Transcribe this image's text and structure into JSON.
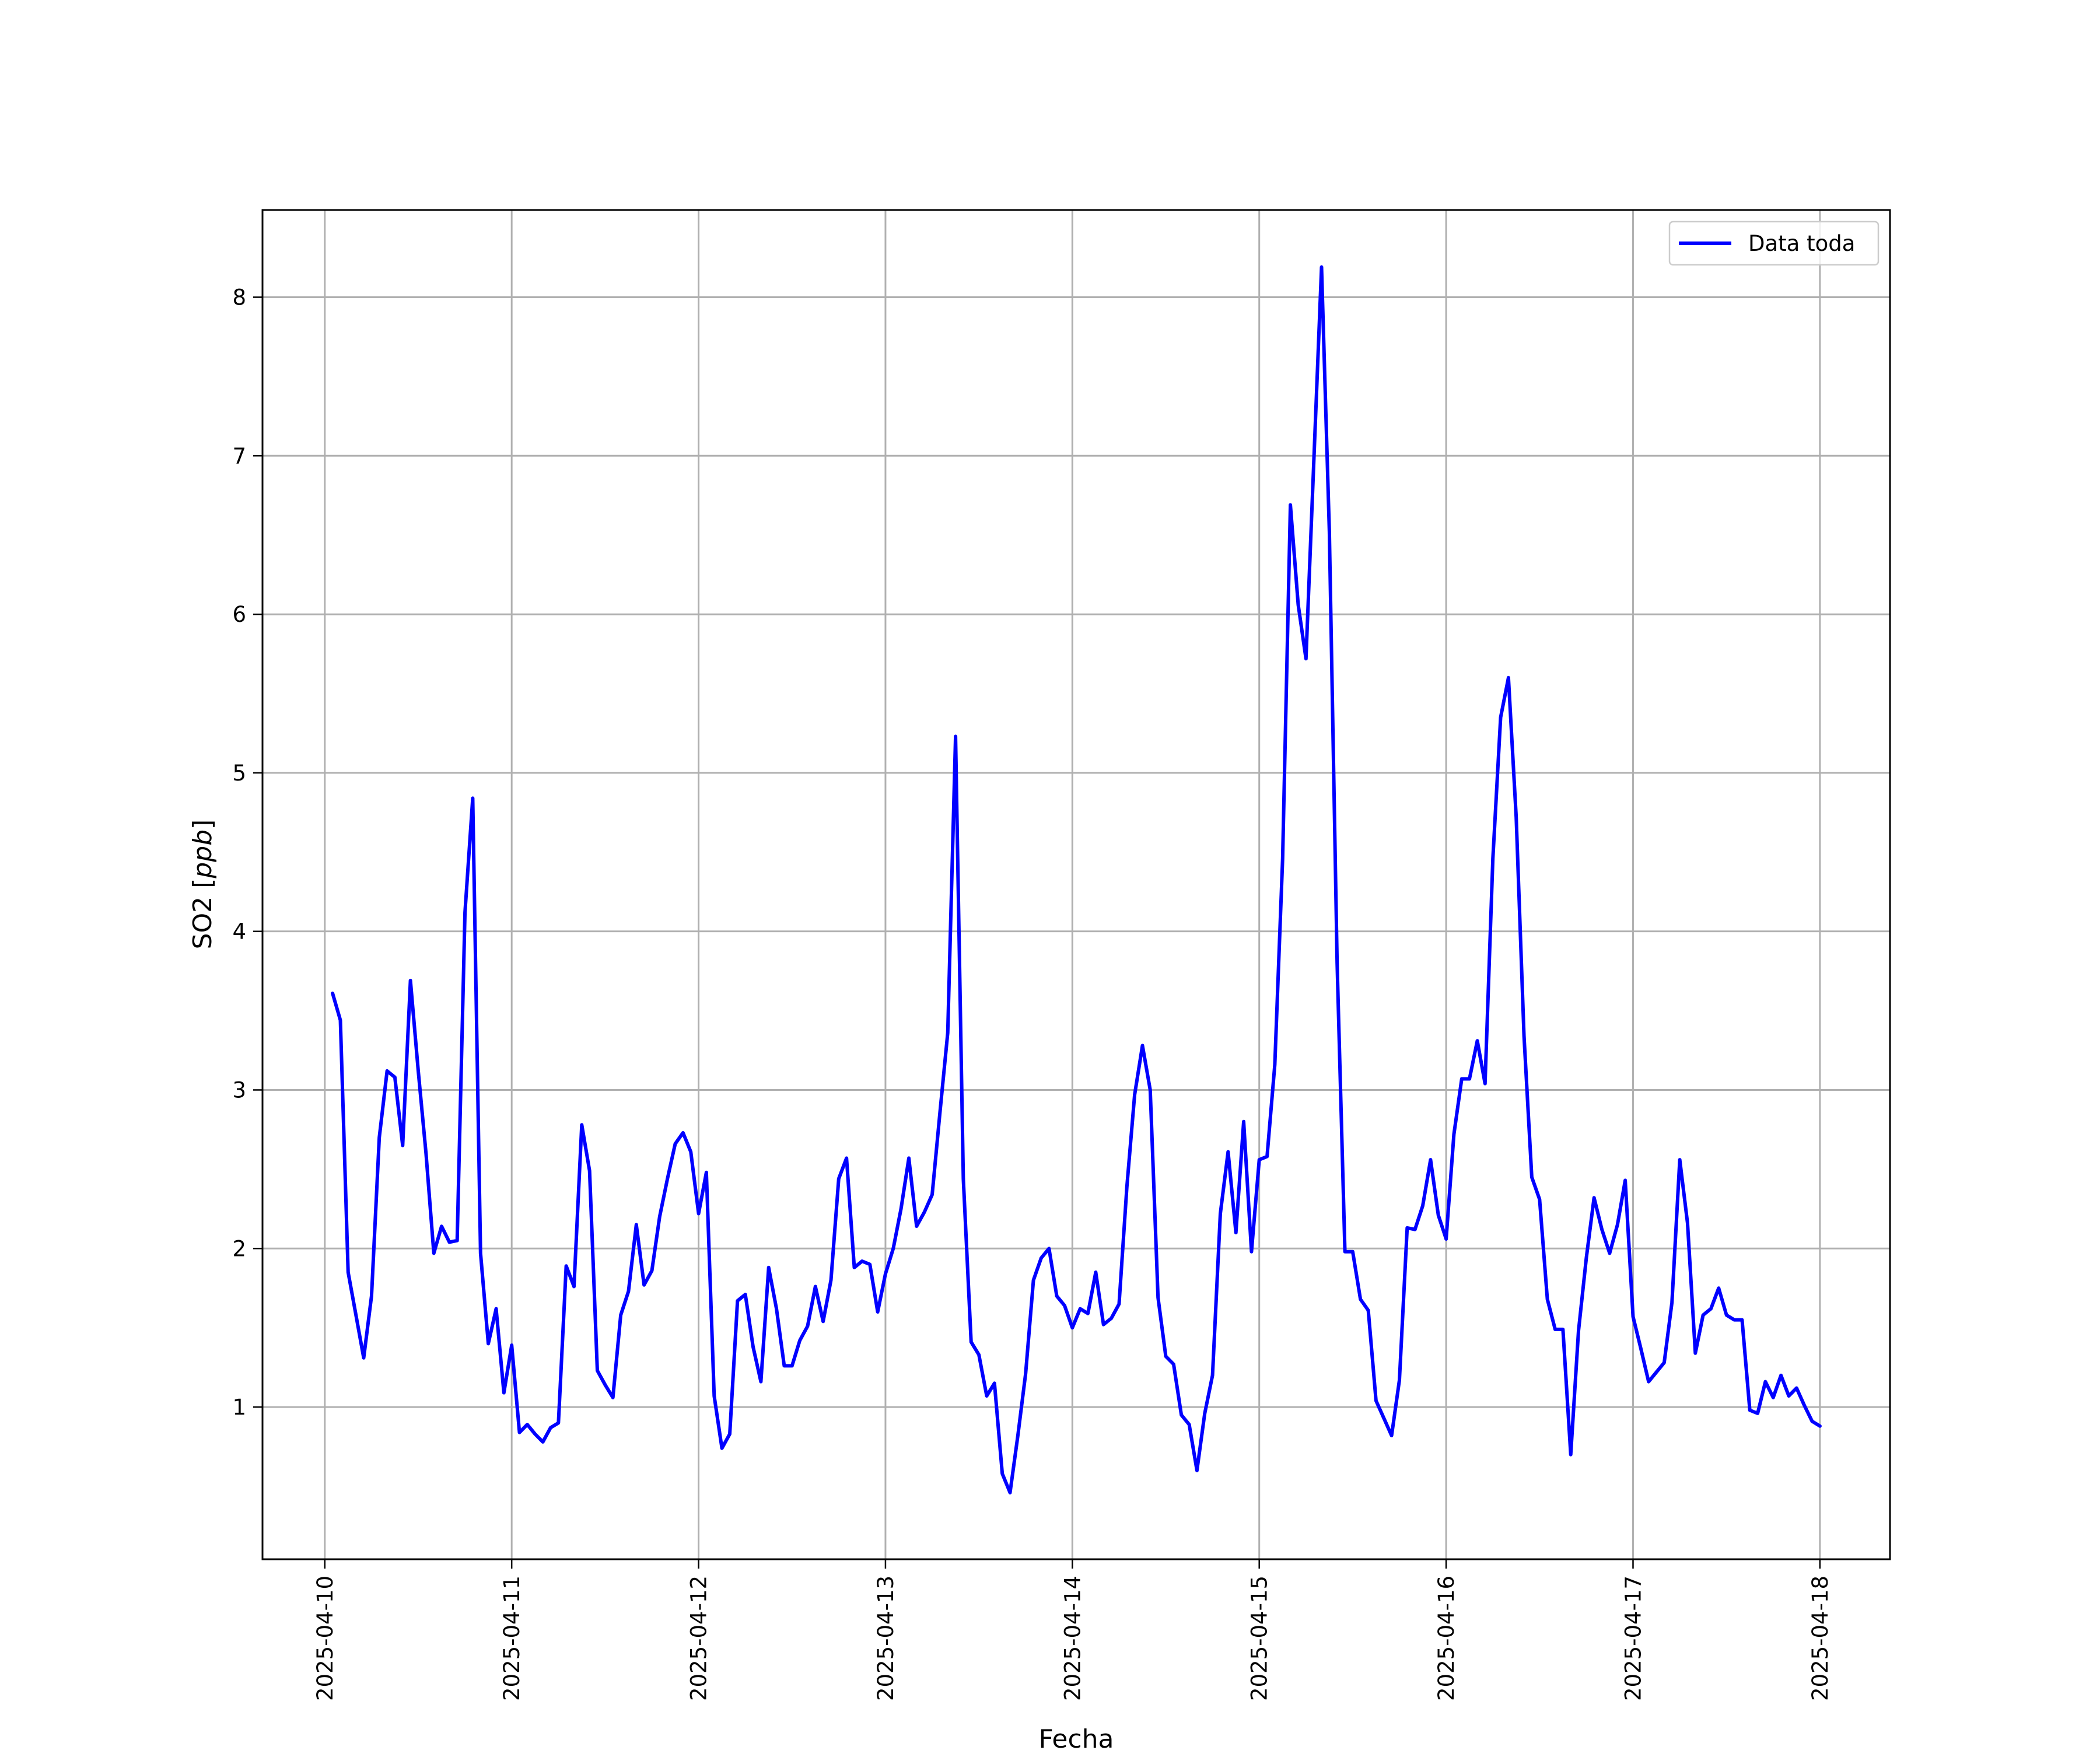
{
  "chart_data": {
    "type": "line",
    "title": "",
    "xlabel": "Fecha",
    "ylabel_main": "SO2 [",
    "ylabel_unit": "ppb",
    "ylabel_end": "]",
    "xlim": [
      "2025-04-09T16:00",
      "2025-04-18T09:00"
    ],
    "ylim": [
      0.04,
      8.55
    ],
    "grid": true,
    "legend_position": "top-right",
    "line_color": "#0000ff",
    "x_ticks": [
      "2025-04-10",
      "2025-04-11",
      "2025-04-12",
      "2025-04-13",
      "2025-04-14",
      "2025-04-15",
      "2025-04-16",
      "2025-04-17",
      "2025-04-18"
    ],
    "y_ticks": [
      1,
      2,
      3,
      4,
      5,
      6,
      7,
      8
    ],
    "series": [
      {
        "name": "Data toda",
        "x": [
          "2025-04-10 01:00",
          "2025-04-10 02:00",
          "2025-04-10 03:00",
          "2025-04-10 04:00",
          "2025-04-10 05:00",
          "2025-04-10 06:00",
          "2025-04-10 07:00",
          "2025-04-10 08:00",
          "2025-04-10 09:00",
          "2025-04-10 10:00",
          "2025-04-10 11:00",
          "2025-04-10 12:00",
          "2025-04-10 13:00",
          "2025-04-10 14:00",
          "2025-04-10 15:00",
          "2025-04-10 16:00",
          "2025-04-10 17:00",
          "2025-04-10 18:00",
          "2025-04-10 19:00",
          "2025-04-10 20:00",
          "2025-04-10 21:00",
          "2025-04-10 22:00",
          "2025-04-10 23:00",
          "2025-04-11 00:00",
          "2025-04-11 01:00",
          "2025-04-11 02:00",
          "2025-04-11 03:00",
          "2025-04-11 04:00",
          "2025-04-11 05:00",
          "2025-04-11 06:00",
          "2025-04-11 07:00",
          "2025-04-11 08:00",
          "2025-04-11 09:00",
          "2025-04-11 10:00",
          "2025-04-11 11:00",
          "2025-04-11 12:00",
          "2025-04-11 13:00",
          "2025-04-11 14:00",
          "2025-04-11 15:00",
          "2025-04-11 16:00",
          "2025-04-11 17:00",
          "2025-04-11 18:00",
          "2025-04-11 19:00",
          "2025-04-11 20:00",
          "2025-04-11 21:00",
          "2025-04-11 22:00",
          "2025-04-11 23:00",
          "2025-04-12 00:00",
          "2025-04-12 01:00",
          "2025-04-12 02:00",
          "2025-04-12 03:00",
          "2025-04-12 04:00",
          "2025-04-12 05:00",
          "2025-04-12 06:00",
          "2025-04-12 07:00",
          "2025-04-12 08:00",
          "2025-04-12 09:00",
          "2025-04-12 10:00",
          "2025-04-12 11:00",
          "2025-04-12 12:00",
          "2025-04-12 13:00",
          "2025-04-12 14:00",
          "2025-04-12 15:00",
          "2025-04-12 16:00",
          "2025-04-12 17:00",
          "2025-04-12 18:00",
          "2025-04-12 19:00",
          "2025-04-12 20:00",
          "2025-04-12 21:00",
          "2025-04-12 22:00",
          "2025-04-12 23:00",
          "2025-04-13 00:00",
          "2025-04-13 01:00",
          "2025-04-13 02:00",
          "2025-04-13 03:00",
          "2025-04-13 04:00",
          "2025-04-13 05:00",
          "2025-04-13 06:00",
          "2025-04-13 07:00",
          "2025-04-13 08:00",
          "2025-04-13 09:00",
          "2025-04-13 10:00",
          "2025-04-13 11:00",
          "2025-04-13 12:00",
          "2025-04-13 13:00",
          "2025-04-13 14:00",
          "2025-04-13 15:00",
          "2025-04-13 16:00",
          "2025-04-13 17:00",
          "2025-04-13 18:00",
          "2025-04-13 19:00",
          "2025-04-13 20:00",
          "2025-04-13 21:00",
          "2025-04-13 22:00",
          "2025-04-13 23:00",
          "2025-04-14 00:00",
          "2025-04-14 01:00",
          "2025-04-14 02:00",
          "2025-04-14 03:00",
          "2025-04-14 04:00",
          "2025-04-14 05:00",
          "2025-04-14 06:00",
          "2025-04-14 07:00",
          "2025-04-14 08:00",
          "2025-04-14 09:00",
          "2025-04-14 10:00",
          "2025-04-14 11:00",
          "2025-04-14 12:00",
          "2025-04-14 13:00",
          "2025-04-14 14:00",
          "2025-04-14 15:00",
          "2025-04-14 16:00",
          "2025-04-14 17:00",
          "2025-04-14 18:00",
          "2025-04-14 19:00",
          "2025-04-14 20:00",
          "2025-04-14 21:00",
          "2025-04-14 22:00",
          "2025-04-14 23:00",
          "2025-04-15 00:00",
          "2025-04-15 01:00",
          "2025-04-15 02:00",
          "2025-04-15 03:00",
          "2025-04-15 04:00",
          "2025-04-15 05:00",
          "2025-04-15 06:00",
          "2025-04-15 07:00",
          "2025-04-15 08:00",
          "2025-04-15 09:00",
          "2025-04-15 10:00",
          "2025-04-15 11:00",
          "2025-04-15 12:00",
          "2025-04-15 13:00",
          "2025-04-15 14:00",
          "2025-04-15 15:00",
          "2025-04-15 16:00",
          "2025-04-15 17:00",
          "2025-04-15 18:00",
          "2025-04-15 19:00",
          "2025-04-15 20:00",
          "2025-04-15 21:00",
          "2025-04-15 22:00",
          "2025-04-15 23:00",
          "2025-04-16 00:00",
          "2025-04-16 01:00",
          "2025-04-16 02:00",
          "2025-04-16 03:00",
          "2025-04-16 04:00",
          "2025-04-16 05:00",
          "2025-04-16 06:00",
          "2025-04-16 07:00",
          "2025-04-16 08:00",
          "2025-04-16 09:00",
          "2025-04-16 10:00",
          "2025-04-16 11:00",
          "2025-04-16 12:00",
          "2025-04-16 13:00",
          "2025-04-16 14:00",
          "2025-04-16 15:00",
          "2025-04-16 16:00",
          "2025-04-16 17:00",
          "2025-04-16 18:00",
          "2025-04-16 19:00",
          "2025-04-16 20:00",
          "2025-04-16 21:00",
          "2025-04-16 22:00",
          "2025-04-16 23:00",
          "2025-04-17 00:00",
          "2025-04-17 01:00",
          "2025-04-17 02:00",
          "2025-04-17 03:00",
          "2025-04-17 04:00",
          "2025-04-17 05:00",
          "2025-04-17 06:00",
          "2025-04-17 07:00",
          "2025-04-17 08:00",
          "2025-04-17 09:00",
          "2025-04-17 10:00",
          "2025-04-17 11:00",
          "2025-04-17 12:00",
          "2025-04-17 13:00",
          "2025-04-17 14:00",
          "2025-04-17 15:00",
          "2025-04-17 16:00",
          "2025-04-17 17:00",
          "2025-04-17 18:00",
          "2025-04-17 19:00",
          "2025-04-17 20:00",
          "2025-04-17 21:00",
          "2025-04-17 22:00",
          "2025-04-17 23:00",
          "2025-04-18 00:00"
        ],
        "values": [
          3.61,
          3.44,
          1.85,
          1.58,
          1.31,
          1.7,
          2.7,
          3.12,
          3.08,
          2.65,
          3.69,
          3.12,
          2.6,
          1.97,
          2.14,
          2.04,
          2.05,
          4.12,
          4.84,
          1.97,
          1.4,
          1.62,
          1.09,
          1.39,
          0.84,
          0.89,
          0.83,
          0.78,
          0.87,
          0.9,
          1.89,
          1.76,
          2.78,
          2.49,
          1.23,
          1.14,
          1.06,
          1.58,
          1.73,
          2.15,
          1.77,
          1.86,
          2.2,
          2.44,
          2.66,
          2.73,
          2.61,
          2.22,
          2.48,
          1.07,
          0.74,
          0.83,
          1.67,
          1.71,
          1.38,
          1.16,
          1.88,
          1.62,
          1.26,
          1.26,
          1.42,
          1.51,
          1.76,
          1.54,
          1.8,
          2.44,
          2.57,
          1.88,
          1.92,
          1.9,
          1.6,
          1.84,
          2.0,
          2.25,
          2.57,
          2.14,
          2.23,
          2.34,
          2.86,
          3.36,
          5.23,
          2.44,
          1.41,
          1.33,
          1.07,
          1.15,
          0.58,
          0.46,
          0.82,
          1.21,
          1.8,
          1.94,
          2.0,
          1.7,
          1.64,
          1.5,
          1.62,
          1.59,
          1.85,
          1.52,
          1.56,
          1.65,
          2.39,
          2.97,
          3.28,
          3.0,
          1.69,
          1.32,
          1.27,
          0.95,
          0.89,
          0.6,
          0.96,
          1.2,
          2.22,
          2.61,
          2.1,
          2.8,
          1.98,
          2.56,
          2.58,
          3.16,
          4.46,
          6.69,
          6.06,
          5.72,
          6.96,
          8.19,
          6.52,
          3.8,
          1.98,
          1.98,
          1.68,
          1.61,
          1.04,
          0.93,
          0.82,
          1.17,
          2.13,
          2.12,
          2.27,
          2.56,
          2.21,
          2.06,
          2.72,
          3.07,
          3.07,
          3.31,
          3.04,
          4.46,
          5.35,
          5.6,
          4.72,
          3.34,
          2.45,
          2.31,
          1.68,
          1.49,
          1.49,
          0.7,
          1.48,
          1.94,
          2.32,
          2.12,
          1.97,
          2.15,
          2.43,
          1.57,
          1.37,
          1.16,
          1.22,
          1.28,
          1.66,
          2.56,
          2.16,
          1.34,
          1.58,
          1.62,
          1.75,
          1.58,
          1.55,
          1.55,
          0.98,
          0.96,
          1.16,
          1.06,
          1.2,
          1.07,
          1.12,
          1.01,
          0.91,
          0.88
        ]
      }
    ]
  }
}
